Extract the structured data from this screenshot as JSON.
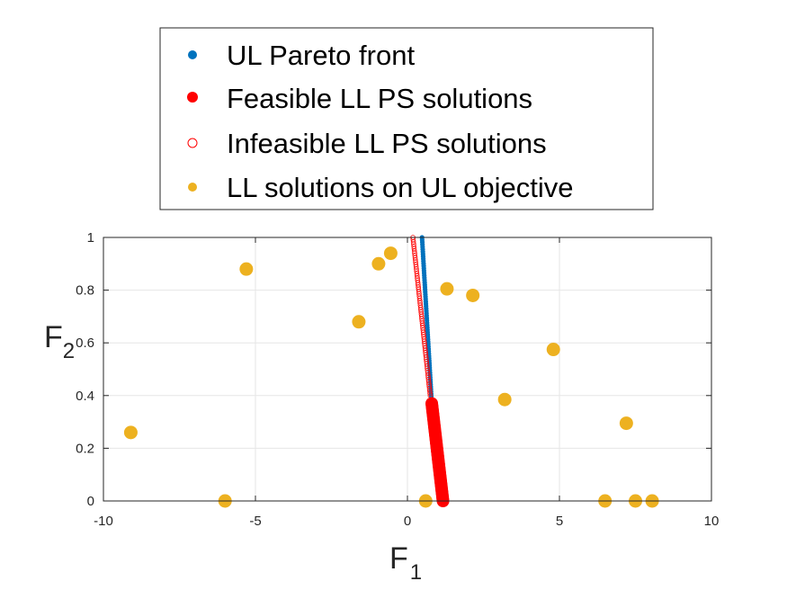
{
  "chart_data": {
    "type": "scatter",
    "xlabel": "F",
    "xlabel_sub": "1",
    "ylabel": "F",
    "ylabel_sub": "2",
    "xlim": [
      -10,
      10
    ],
    "ylim": [
      0,
      1
    ],
    "xticks": [
      -10,
      -5,
      0,
      5,
      10
    ],
    "yticks": [
      0,
      0.2,
      0.4,
      0.6,
      0.8,
      1
    ],
    "xtick_labels": [
      "-10",
      "-5",
      "0",
      "5",
      "10"
    ],
    "ytick_labels": [
      "0",
      "0.2",
      "0.4",
      "0.6",
      "0.8",
      "1"
    ],
    "grid": true,
    "legend_position": "top-center (above plot)",
    "series": [
      {
        "name": "UL Pareto front",
        "marker": "line-dots",
        "color": "#0072BD",
        "segment": [
          [
            0.48,
            1.0
          ],
          [
            0.8,
            0.37
          ]
        ]
      },
      {
        "name": "Feasible LL PS solutions",
        "marker": "filled-circle",
        "color": "#FF0000",
        "segment": [
          [
            0.8,
            0.37
          ],
          [
            1.17,
            0.0
          ]
        ]
      },
      {
        "name": "Infeasible LL PS solutions",
        "marker": "open-circle",
        "color": "#FF0000",
        "segment": [
          [
            0.18,
            1.0
          ],
          [
            0.75,
            0.4
          ]
        ]
      },
      {
        "name": "LL solutions on UL objective",
        "marker": "filled-circle",
        "color": "#EDB120",
        "points": [
          {
            "x": -9.1,
            "y": 0.26
          },
          {
            "x": -5.3,
            "y": 0.88
          },
          {
            "x": -6.0,
            "y": 0.0
          },
          {
            "x": -1.6,
            "y": 0.68
          },
          {
            "x": -0.95,
            "y": 0.9
          },
          {
            "x": -0.55,
            "y": 0.94
          },
          {
            "x": 0.6,
            "y": 0.0
          },
          {
            "x": 1.3,
            "y": 0.805
          },
          {
            "x": 2.15,
            "y": 0.78
          },
          {
            "x": 3.2,
            "y": 0.385
          },
          {
            "x": 4.8,
            "y": 0.575
          },
          {
            "x": 6.5,
            "y": 0.0
          },
          {
            "x": 7.2,
            "y": 0.295
          },
          {
            "x": 7.5,
            "y": 0.0
          },
          {
            "x": 8.05,
            "y": 0.0
          }
        ]
      }
    ]
  }
}
